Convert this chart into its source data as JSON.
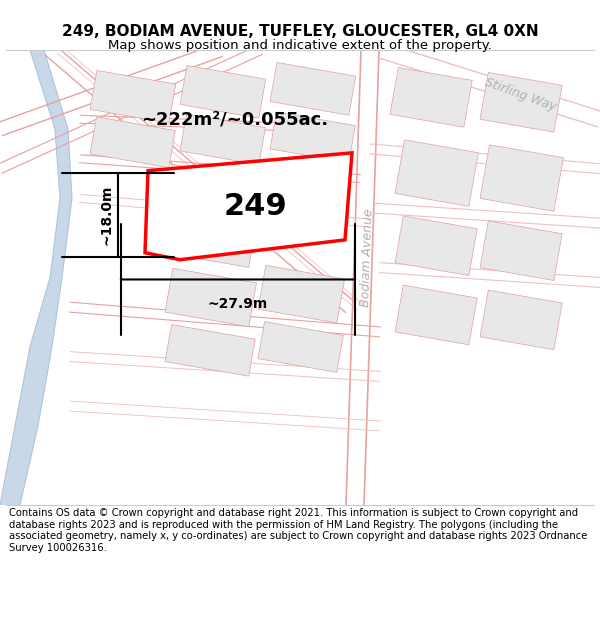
{
  "title_line1": "249, BODIAM AVENUE, TUFFLEY, GLOUCESTER, GL4 0XN",
  "title_line2": "Map shows position and indicative extent of the property.",
  "footer": "Contains OS data © Crown copyright and database right 2021. This information is subject to Crown copyright and database rights 2023 and is reproduced with the permission of HM Land Registry. The polygons (including the associated geometry, namely x, y co-ordinates) are subject to Crown copyright and database rights 2023 Ordnance Survey 100026316.",
  "bg_color": "#ffffff",
  "map_bg": "#ffffff",
  "parcel_fill": "#e8e8e8",
  "parcel_border": "#e0a0a0",
  "road_main": "#f0b0b0",
  "road_faint": "#f0c8c8",
  "water_fill": "#c8d8e8",
  "water_border": "#b0c4d8",
  "highlight_fill": "#ffffff",
  "highlight_border": "#ff0000",
  "meas_color": "#000000",
  "street_color": "#b0b0b0",
  "label_249": "249",
  "area_label": "~222m²/~0.055ac.",
  "width_label": "~27.9m",
  "height_label": "~18.0m",
  "street_bodiam": "Bodiam Avenue",
  "street_stirling": "Stirling Way",
  "title_fontsize": 11,
  "subtitle_fontsize": 9.5,
  "footer_fontsize": 7.2
}
